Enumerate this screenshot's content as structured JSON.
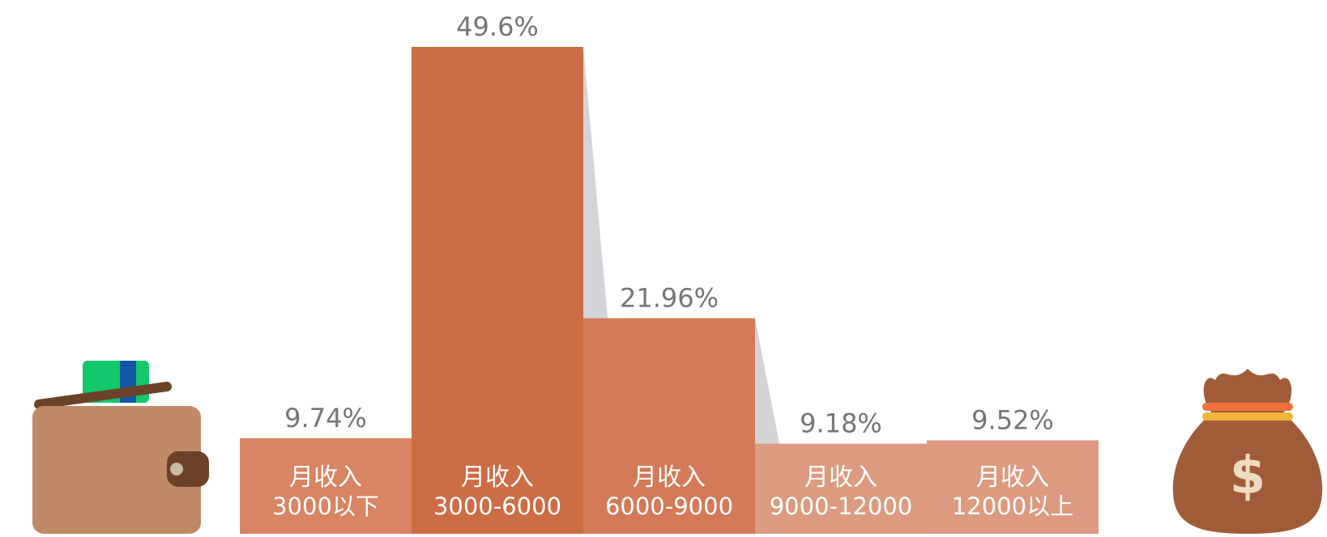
{
  "chart_data": {
    "type": "bar",
    "categories": [
      [
        "月收入",
        "3000以下"
      ],
      [
        "月收入",
        "3000-6000"
      ],
      [
        "月收入",
        "6000-9000"
      ],
      [
        "月收入",
        "9000-12000"
      ],
      [
        "月收入",
        "12000以上"
      ]
    ],
    "values": [
      9.74,
      49.6,
      21.96,
      9.18,
      9.52
    ],
    "value_labels": [
      "9.74%",
      "49.6%",
      "21.96%",
      "9.18%",
      "9.52%"
    ],
    "title": "",
    "xlabel": "",
    "ylabel": "",
    "ylim": [
      0,
      49.6
    ],
    "grid": false,
    "legend": "none",
    "colors": [
      "#d98463",
      "#cd6d45",
      "#d47a58",
      "#dc9b80",
      "#dd9a80"
    ],
    "value_label_color": "#757575",
    "shadow_color": "#d4d4d8"
  },
  "icons": {
    "left": "wallet-icon",
    "right": "money-bag-icon"
  }
}
